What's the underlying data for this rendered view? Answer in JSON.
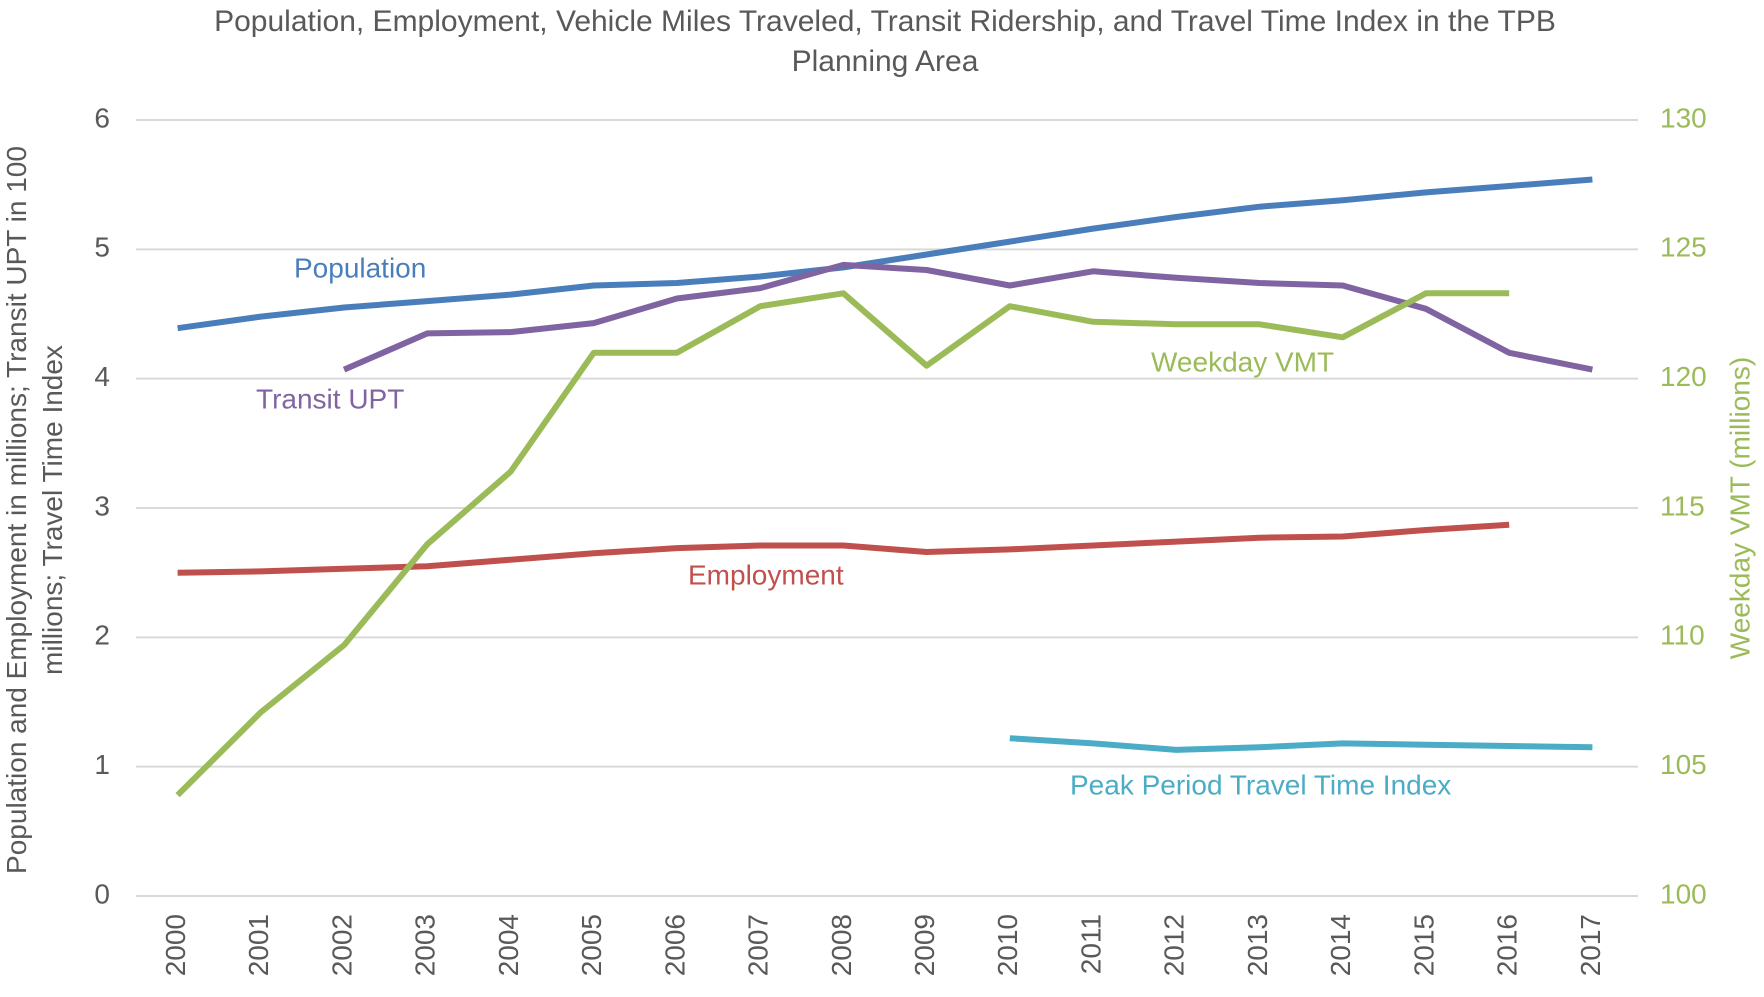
{
  "chart_data": {
    "type": "line",
    "title": "Population, Employment, Vehicle Miles Traveled, Transit Ridership, and Travel Time Index in the TPB Planning Area",
    "ylabel": "Population and Employment in millions; Transit UPT in 100 millions; Travel Time Index",
    "y2label": "Weekday VMT (millions)",
    "categories": [
      "2000",
      "2001",
      "2002",
      "2003",
      "2004",
      "2005",
      "2006",
      "2007",
      "2008",
      "2009",
      "2010",
      "2011",
      "2012",
      "2013",
      "2014",
      "2015",
      "2016",
      "2017"
    ],
    "ylim": [
      0,
      6
    ],
    "yticks": [
      0,
      1,
      2,
      3,
      4,
      5,
      6
    ],
    "y2lim": [
      100,
      130
    ],
    "y2ticks": [
      100,
      105,
      110,
      115,
      120,
      125,
      130
    ],
    "y2color": "#9bbb59",
    "grid": true,
    "series": [
      {
        "name": "Population",
        "color": "#4a7ebb",
        "values": [
          4.39,
          4.48,
          4.55,
          4.6,
          4.65,
          4.72,
          4.74,
          4.79,
          4.86,
          4.96,
          5.06,
          5.16,
          5.25,
          5.33,
          5.38,
          5.44,
          5.49,
          5.54
        ]
      },
      {
        "name": "Transit UPT",
        "color": "#8064a2",
        "values": [
          null,
          null,
          4.07,
          4.35,
          4.36,
          4.43,
          4.62,
          4.7,
          4.88,
          4.84,
          4.72,
          4.83,
          4.78,
          4.74,
          4.72,
          4.54,
          4.2,
          4.07
        ]
      },
      {
        "name": "Employment",
        "color": "#c0504d",
        "values": [
          2.5,
          2.51,
          2.53,
          2.55,
          2.6,
          2.65,
          2.69,
          2.71,
          2.71,
          2.66,
          2.68,
          2.71,
          2.74,
          2.77,
          2.78,
          2.83,
          2.87,
          null
        ]
      },
      {
        "name": "Weekday VMT",
        "color": "#9bbb59",
        "axis": "y2",
        "values": [
          103.9,
          107.1,
          109.7,
          113.6,
          116.4,
          121.0,
          121.0,
          122.8,
          123.3,
          120.5,
          122.8,
          122.2,
          122.1,
          122.1,
          121.6,
          123.3,
          123.3,
          null
        ]
      },
      {
        "name": "Peak Period Travel Time Index",
        "color": "#4bacc6",
        "values": [
          null,
          null,
          null,
          null,
          null,
          null,
          null,
          null,
          null,
          null,
          1.22,
          1.18,
          1.13,
          1.15,
          1.18,
          1.17,
          1.16,
          1.15
        ]
      }
    ]
  }
}
